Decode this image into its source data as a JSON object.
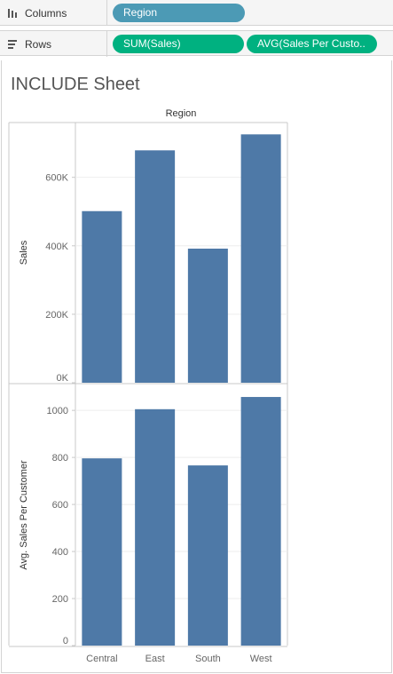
{
  "shelves": {
    "columns": {
      "label": "Columns",
      "icon": "columns-icon",
      "pills": [
        "Region"
      ]
    },
    "rows": {
      "label": "Rows",
      "icon": "rows-icon",
      "pills": [
        "SUM(Sales)",
        "AVG(Sales Per Custo.."
      ]
    }
  },
  "sheet": {
    "title": "INCLUDE Sheet"
  },
  "colors": {
    "bar": "#4e79a7",
    "dimension_pill": "#4c9ab5",
    "measure_pill": "#00b180"
  },
  "chart_data": [
    {
      "type": "bar",
      "title": "",
      "column_header": "Region",
      "categories": [
        "Central",
        "East",
        "South",
        "West"
      ],
      "values": [
        501240,
        678781,
        391722,
        725458
      ],
      "ylabel": "Sales",
      "ylim": [
        0,
        760000
      ],
      "yticks": [
        0,
        200000,
        400000,
        600000
      ],
      "ytick_labels": [
        "0K",
        "200K",
        "400K",
        "600K"
      ]
    },
    {
      "type": "bar",
      "title": "",
      "xlabel": "",
      "categories": [
        "Central",
        "East",
        "South",
        "West"
      ],
      "values": [
        796,
        1005,
        766,
        1057
      ],
      "ylabel": "Avg. Sales Per Customer",
      "ylim": [
        0,
        1110
      ],
      "yticks": [
        0,
        200,
        400,
        600,
        800,
        1000
      ],
      "ytick_labels": [
        "0",
        "200",
        "400",
        "600",
        "800",
        "1000"
      ]
    }
  ]
}
